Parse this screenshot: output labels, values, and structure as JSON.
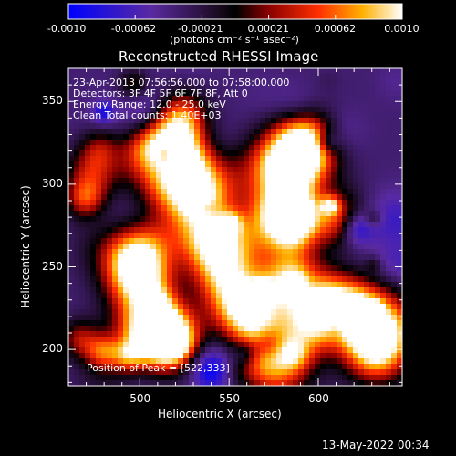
{
  "chart_data": {
    "type": "heatmap",
    "title": "Reconstructed RHESSI Image",
    "xlabel": "Heliocentric X (arcsec)",
    "ylabel": "Heliocentric Y (arcsec)",
    "xlim": [
      460,
      647
    ],
    "ylim": [
      178,
      370
    ],
    "xticks": [
      500,
      550,
      600
    ],
    "yticks": [
      200,
      250,
      300,
      350
    ],
    "colorbar": {
      "range": [
        -0.001,
        0.001
      ],
      "ticks": [
        "-0.0010",
        "-0.00062",
        "-0.00021",
        "0.00021",
        "0.00062",
        "0.0010"
      ],
      "label": "(photons cm⁻² s⁻¹ asec⁻²)"
    },
    "annotations": [
      "23-Apr-2013 07:56:56.000 to 07:58:00.000",
      "Detectors: 3F 4F 5F 6F 7F 8F, Att 0",
      "Energy Range: 12.0 - 25.0 keV",
      "Clean     Total counts: 1.40E+03"
    ],
    "peak_label": "Position of Peak = [522,333]",
    "peak": [
      522,
      333
    ]
  },
  "footer": {
    "date": "13-May-2022 00:34"
  },
  "colors": {
    "background": "#000000",
    "text": "#ffffff"
  }
}
